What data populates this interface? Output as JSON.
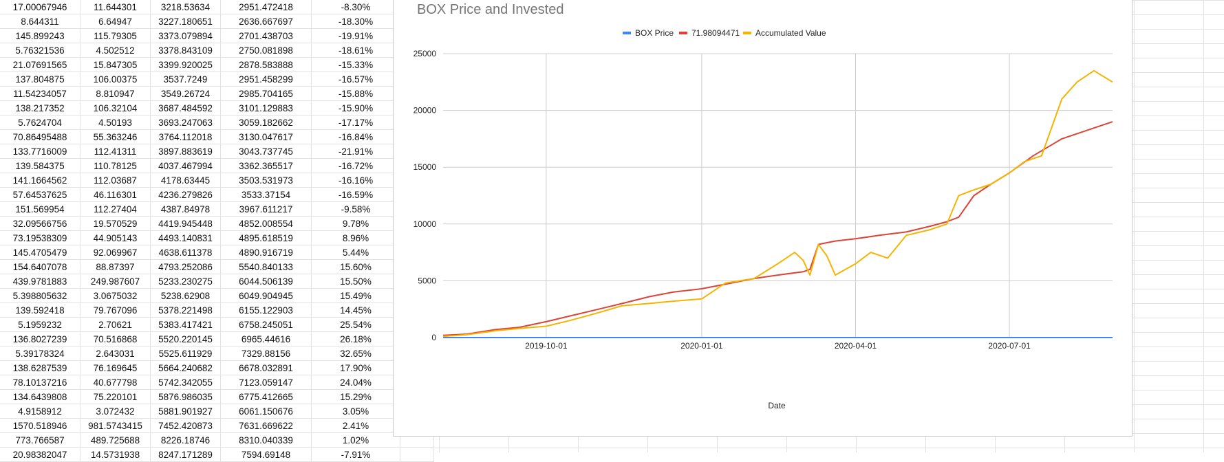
{
  "spreadsheet": {
    "rows": [
      [
        "17.00067946",
        "11.644301",
        "3218.53634",
        "2951.472418",
        "-8.30%"
      ],
      [
        "8.644311",
        "6.64947",
        "3227.180651",
        "2636.667697",
        "-18.30%"
      ],
      [
        "145.899243",
        "115.79305",
        "3373.079894",
        "2701.438703",
        "-19.91%"
      ],
      [
        "5.76321536",
        "4.502512",
        "3378.843109",
        "2750.081898",
        "-18.61%"
      ],
      [
        "21.07691565",
        "15.847305",
        "3399.920025",
        "2878.583888",
        "-15.33%"
      ],
      [
        "137.804875",
        "106.00375",
        "3537.7249",
        "2951.458299",
        "-16.57%"
      ],
      [
        "11.54234057",
        "8.810947",
        "3549.26724",
        "2985.704165",
        "-15.88%"
      ],
      [
        "138.217352",
        "106.32104",
        "3687.484592",
        "3101.129883",
        "-15.90%"
      ],
      [
        "5.7624704",
        "4.50193",
        "3693.247063",
        "3059.182662",
        "-17.17%"
      ],
      [
        "70.86495488",
        "55.363246",
        "3764.112018",
        "3130.047617",
        "-16.84%"
      ],
      [
        "133.7716009",
        "112.41311",
        "3897.883619",
        "3043.737745",
        "-21.91%"
      ],
      [
        "139.584375",
        "110.78125",
        "4037.467994",
        "3362.365517",
        "-16.72%"
      ],
      [
        "141.1664562",
        "112.03687",
        "4178.63445",
        "3503.531973",
        "-16.16%"
      ],
      [
        "57.64537625",
        "46.116301",
        "4236.279826",
        "3533.37154",
        "-16.59%"
      ],
      [
        "151.569954",
        "112.27404",
        "4387.84978",
        "3967.611217",
        "-9.58%"
      ],
      [
        "32.09566756",
        "19.570529",
        "4419.945448",
        "4852.008554",
        "9.78%"
      ],
      [
        "73.19538309",
        "44.905143",
        "4493.140831",
        "4895.618519",
        "8.96%"
      ],
      [
        "145.4705479",
        "92.069967",
        "4638.611378",
        "4890.916719",
        "5.44%"
      ],
      [
        "154.6407078",
        "88.87397",
        "4793.252086",
        "5540.840133",
        "15.60%"
      ],
      [
        "439.9781883",
        "249.987607",
        "5233.230275",
        "6044.506139",
        "15.50%"
      ],
      [
        "5.398805632",
        "3.0675032",
        "5238.62908",
        "6049.904945",
        "15.49%"
      ],
      [
        "139.592418",
        "79.767096",
        "5378.221498",
        "6155.122903",
        "14.45%"
      ],
      [
        "5.1959232",
        "2.70621",
        "5383.417421",
        "6758.245051",
        "25.54%"
      ],
      [
        "136.8027239",
        "70.516868",
        "5520.220145",
        "6965.44616",
        "26.18%"
      ],
      [
        "5.39178324",
        "2.643031",
        "5525.611929",
        "7329.88156",
        "32.65%"
      ],
      [
        "138.6287539",
        "76.169645",
        "5664.240682",
        "6678.032891",
        "17.90%"
      ],
      [
        "78.10137216",
        "40.677798",
        "5742.342055",
        "7123.059147",
        "24.04%"
      ],
      [
        "134.6439808",
        "75.220101",
        "5876.986035",
        "6775.412665",
        "15.29%"
      ],
      [
        "4.9158912",
        "3.072432",
        "5881.901927",
        "6061.150676",
        "3.05%"
      ],
      [
        "1570.518946",
        "981.5743415",
        "7452.420873",
        "7631.669622",
        "2.41%"
      ],
      [
        "773.766587",
        "489.725688",
        "8226.18746",
        "8310.040339",
        "1.02%"
      ],
      [
        "20.98382047",
        "14.5731938",
        "8247.171289",
        "7594.69148",
        "-7.91%"
      ]
    ]
  },
  "chart_data": {
    "type": "line",
    "title": "BOX Price and Invested",
    "xlabel": "Date",
    "ylabel": "",
    "ylim": [
      0,
      25000
    ],
    "y_ticks": [
      "25000",
      "20000",
      "15000",
      "10000",
      "5000",
      "0"
    ],
    "x_ticks": [
      "2019-10-01",
      "2020-01-01",
      "2020-04-01",
      "2020-07-01"
    ],
    "x_range": [
      "2019-08-01",
      "2020-08-31"
    ],
    "legend_position": "top",
    "grid": true,
    "series": [
      {
        "name": "BOX Price",
        "color": "#4285f4",
        "x": [
          "2019-08-01",
          "2020-08-31"
        ],
        "values": [
          1,
          2
        ]
      },
      {
        "name": "71.98094471",
        "color": "#db4437",
        "x": [
          "2019-08-01",
          "2019-08-15",
          "2019-09-01",
          "2019-09-15",
          "2019-10-01",
          "2019-10-15",
          "2019-11-01",
          "2019-11-15",
          "2019-12-01",
          "2019-12-15",
          "2020-01-01",
          "2020-01-15",
          "2020-02-01",
          "2020-02-15",
          "2020-03-01",
          "2020-03-05",
          "2020-03-10",
          "2020-03-20",
          "2020-04-01",
          "2020-04-15",
          "2020-05-01",
          "2020-05-15",
          "2020-05-25",
          "2020-06-01",
          "2020-06-10",
          "2020-06-20",
          "2020-07-01",
          "2020-07-15",
          "2020-08-01",
          "2020-08-15",
          "2020-08-31"
        ],
        "values": [
          200,
          300,
          700,
          900,
          1400,
          1900,
          2500,
          3000,
          3600,
          4000,
          4300,
          4700,
          5200,
          5500,
          5800,
          6000,
          8200,
          8500,
          8700,
          9000,
          9300,
          9800,
          10200,
          10600,
          12500,
          13500,
          14500,
          16000,
          17500,
          18200,
          19000
        ]
      },
      {
        "name": "Accumulated Value",
        "color": "#f4b400",
        "x": [
          "2019-08-01",
          "2019-08-15",
          "2019-09-01",
          "2019-09-15",
          "2019-10-01",
          "2019-10-15",
          "2019-11-01",
          "2019-11-15",
          "2019-12-01",
          "2019-12-15",
          "2020-01-01",
          "2020-01-15",
          "2020-02-01",
          "2020-02-15",
          "2020-02-25",
          "2020-03-01",
          "2020-03-05",
          "2020-03-10",
          "2020-03-15",
          "2020-03-20",
          "2020-04-01",
          "2020-04-10",
          "2020-04-20",
          "2020-05-01",
          "2020-05-15",
          "2020-05-25",
          "2020-06-01",
          "2020-06-10",
          "2020-06-20",
          "2020-07-01",
          "2020-07-10",
          "2020-07-20",
          "2020-08-01",
          "2020-08-10",
          "2020-08-20",
          "2020-08-31"
        ],
        "values": [
          100,
          250,
          600,
          800,
          1000,
          1500,
          2200,
          2800,
          3000,
          3200,
          3400,
          4800,
          5200,
          6500,
          7500,
          6800,
          5500,
          8200,
          7200,
          5500,
          6500,
          7500,
          7000,
          9000,
          9500,
          10000,
          12500,
          13000,
          13500,
          14500,
          15500,
          16000,
          21000,
          22500,
          23500,
          22500
        ]
      }
    ]
  }
}
